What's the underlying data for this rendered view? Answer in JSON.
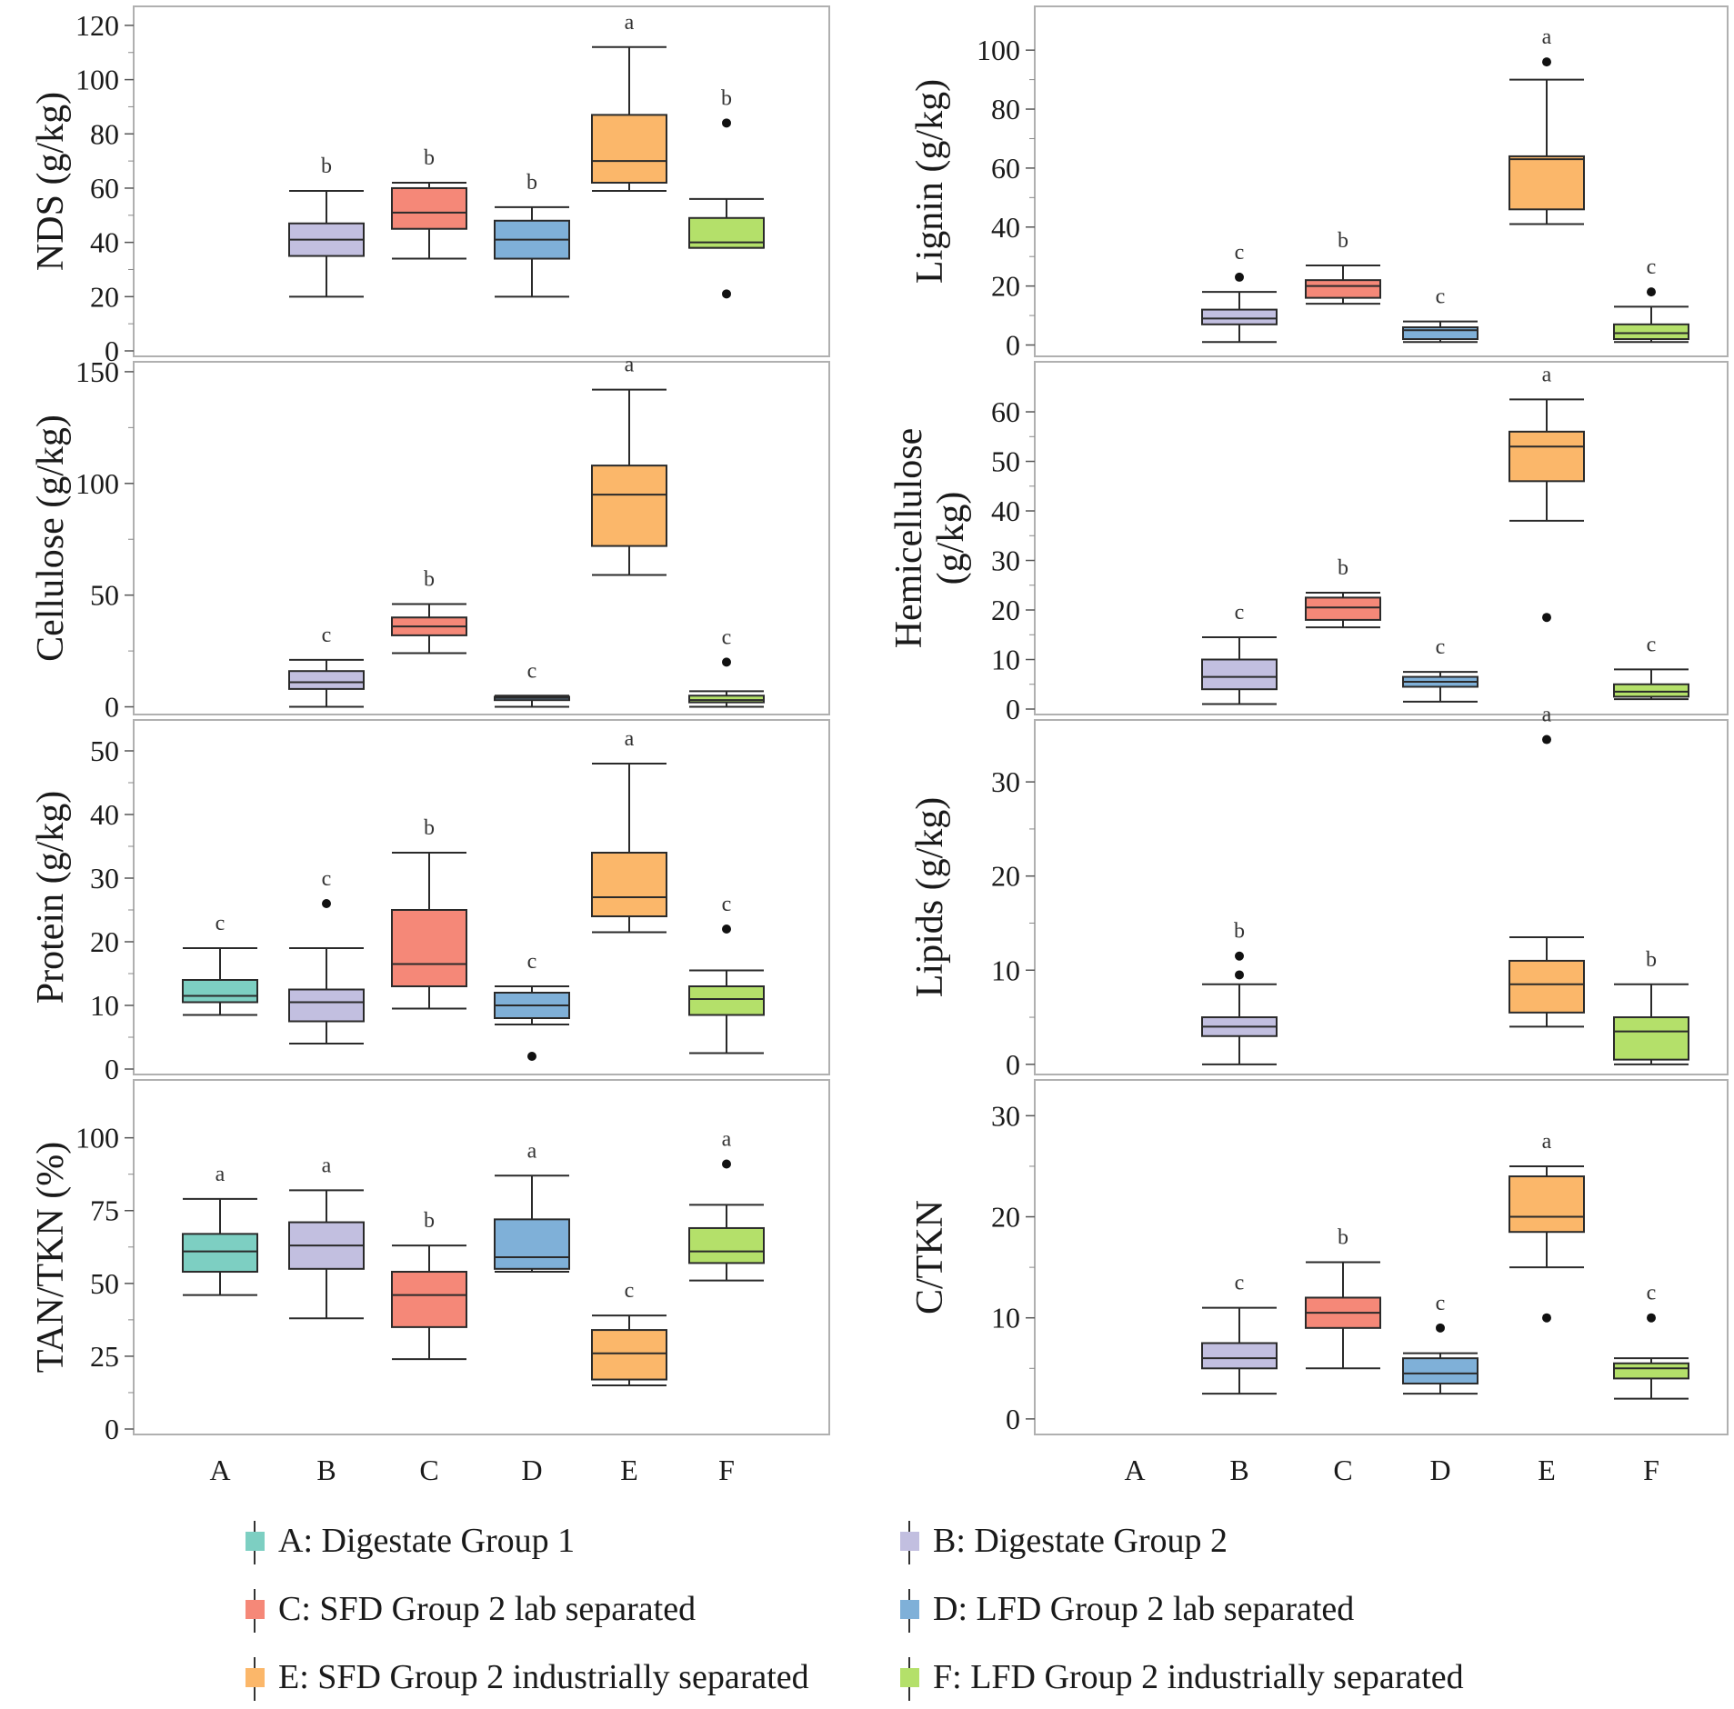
{
  "colors": {
    "A": "#7dcfc2",
    "B": "#c2bfe0",
    "C": "#f58878",
    "D": "#7fb0d8",
    "E": "#fbb76a",
    "F": "#b4e06a"
  },
  "legend": [
    {
      "key": "A",
      "label": "A: Digestate Group 1"
    },
    {
      "key": "B",
      "label": "B: Digestate Group 2"
    },
    {
      "key": "C",
      "label": "C: SFD Group 2 lab separated"
    },
    {
      "key": "D",
      "label": "D: LFD Group 2 lab separated"
    },
    {
      "key": "E",
      "label": "E: SFD Group 2 industrially separated"
    },
    {
      "key": "F",
      "label": "F: LFD Group 2 industrially separated"
    }
  ],
  "chart_data": [
    {
      "type": "box",
      "title": "NDS",
      "ylabel": [
        "NDS (g/kg)"
      ],
      "ylim": [
        0,
        125
      ],
      "yticks": [
        0,
        20,
        40,
        60,
        80,
        100,
        120
      ],
      "categories": [
        "A",
        "B",
        "C",
        "D",
        "E",
        "F"
      ],
      "boxes": [
        {
          "cat": "B",
          "min": 20,
          "q1": 35,
          "median": 41,
          "q3": 47,
          "max": 59,
          "outliers": [],
          "sig": "b"
        },
        {
          "cat": "C",
          "min": 34,
          "q1": 45,
          "median": 51,
          "q3": 60,
          "max": 62,
          "outliers": [],
          "sig": "b"
        },
        {
          "cat": "D",
          "min": 20,
          "q1": 34,
          "median": 41,
          "q3": 48,
          "max": 53,
          "outliers": [],
          "sig": "b"
        },
        {
          "cat": "E",
          "min": 59,
          "q1": 62,
          "median": 70,
          "q3": 87,
          "max": 112,
          "outliers": [],
          "sig": "a"
        },
        {
          "cat": "F",
          "min": 38,
          "q1": 38,
          "median": 40,
          "q3": 49,
          "max": 56,
          "outliers": [
            21,
            84
          ],
          "sig": "b"
        }
      ]
    },
    {
      "type": "box",
      "title": "Lignin",
      "ylabel": [
        "Lignin (g/kg)"
      ],
      "ylim": [
        -2,
        113
      ],
      "yticks": [
        0,
        20,
        40,
        60,
        80,
        100
      ],
      "categories": [
        "A",
        "B",
        "C",
        "D",
        "E",
        "F"
      ],
      "boxes": [
        {
          "cat": "B",
          "min": 1,
          "q1": 7,
          "median": 9,
          "q3": 12,
          "max": 18,
          "outliers": [
            23
          ],
          "sig": "c"
        },
        {
          "cat": "C",
          "min": 14,
          "q1": 16,
          "median": 20,
          "q3": 22,
          "max": 27,
          "outliers": [],
          "sig": "b"
        },
        {
          "cat": "D",
          "min": 1,
          "q1": 2,
          "median": 5,
          "q3": 6,
          "max": 8,
          "outliers": [],
          "sig": "c"
        },
        {
          "cat": "E",
          "min": 41,
          "q1": 46,
          "median": 63,
          "q3": 64,
          "max": 90,
          "outliers": [
            96
          ],
          "sig": "a"
        },
        {
          "cat": "F",
          "min": 1,
          "q1": 2,
          "median": 4,
          "q3": 7,
          "max": 13,
          "outliers": [
            18
          ],
          "sig": "c"
        }
      ]
    },
    {
      "type": "box",
      "title": "Cellulose",
      "ylabel": [
        "Cellulose (g/kg)"
      ],
      "ylim": [
        -1,
        152
      ],
      "yticks": [
        0,
        50,
        100,
        150
      ],
      "categories": [
        "A",
        "B",
        "C",
        "D",
        "E",
        "F"
      ],
      "boxes": [
        {
          "cat": "B",
          "min": 0,
          "q1": 8,
          "median": 11,
          "q3": 16,
          "max": 21,
          "outliers": [],
          "sig": "c"
        },
        {
          "cat": "C",
          "min": 24,
          "q1": 32,
          "median": 36,
          "q3": 40,
          "max": 46,
          "outliers": [],
          "sig": "b"
        },
        {
          "cat": "D",
          "min": 0,
          "q1": 3,
          "median": 4,
          "q3": 4.5,
          "max": 5,
          "outliers": [],
          "sig": "c"
        },
        {
          "cat": "E",
          "min": 59,
          "q1": 72,
          "median": 95,
          "q3": 108,
          "max": 142,
          "outliers": [],
          "sig": "a"
        },
        {
          "cat": "F",
          "min": 0,
          "q1": 2,
          "median": 3,
          "q3": 5,
          "max": 7,
          "outliers": [
            20
          ],
          "sig": "c"
        }
      ]
    },
    {
      "type": "box",
      "title": "Hemicellulose",
      "ylabel": [
        "Hemicellulose",
        "(g/kg)"
      ],
      "ylim": [
        0,
        69
      ],
      "yticks": [
        0,
        10,
        20,
        30,
        40,
        50,
        60
      ],
      "categories": [
        "A",
        "B",
        "C",
        "D",
        "E",
        "F"
      ],
      "boxes": [
        {
          "cat": "B",
          "min": 1,
          "q1": 4,
          "median": 6.5,
          "q3": 10,
          "max": 14.5,
          "outliers": [],
          "sig": "c"
        },
        {
          "cat": "C",
          "min": 16.5,
          "q1": 18,
          "median": 20.5,
          "q3": 22.5,
          "max": 23.5,
          "outliers": [],
          "sig": "b"
        },
        {
          "cat": "D",
          "min": 1.5,
          "q1": 4.5,
          "median": 5.5,
          "q3": 6.5,
          "max": 7.5,
          "outliers": [],
          "sig": "c"
        },
        {
          "cat": "E",
          "min": 38,
          "q1": 46,
          "median": 53,
          "q3": 56,
          "max": 62.5,
          "outliers": [
            18.5
          ],
          "sig": "a"
        },
        {
          "cat": "F",
          "min": 2,
          "q1": 2.5,
          "median": 3.5,
          "q3": 5,
          "max": 8,
          "outliers": [],
          "sig": "c"
        }
      ]
    },
    {
      "type": "box",
      "title": "Protein",
      "ylabel": [
        "Protein (g/kg)"
      ],
      "ylim": [
        0,
        54
      ],
      "yticks": [
        0,
        10,
        20,
        30,
        40,
        50
      ],
      "categories": [
        "A",
        "B",
        "C",
        "D",
        "E",
        "F"
      ],
      "boxes": [
        {
          "cat": "A",
          "min": 8.5,
          "q1": 10.5,
          "median": 11.5,
          "q3": 14,
          "max": 19,
          "outliers": [],
          "sig": "c"
        },
        {
          "cat": "B",
          "min": 4,
          "q1": 7.5,
          "median": 10.5,
          "q3": 12.5,
          "max": 19,
          "outliers": [
            26
          ],
          "sig": "c"
        },
        {
          "cat": "C",
          "min": 9.5,
          "q1": 13,
          "median": 16.5,
          "q3": 25,
          "max": 34,
          "outliers": [],
          "sig": "b"
        },
        {
          "cat": "D",
          "min": 7,
          "q1": 8,
          "median": 10,
          "q3": 12,
          "max": 13,
          "outliers": [
            2
          ],
          "sig": "c"
        },
        {
          "cat": "E",
          "min": 21.5,
          "q1": 24,
          "median": 27,
          "q3": 34,
          "max": 48,
          "outliers": [],
          "sig": "a"
        },
        {
          "cat": "F",
          "min": 2.5,
          "q1": 8.5,
          "median": 11,
          "q3": 13,
          "max": 15.5,
          "outliers": [
            22
          ],
          "sig": "c"
        }
      ]
    },
    {
      "type": "box",
      "title": "Lipids",
      "ylabel": [
        "Lipids (g/kg)"
      ],
      "ylim": [
        -0.5,
        36
      ],
      "yticks": [
        0,
        10,
        20,
        30
      ],
      "categories": [
        "A",
        "B",
        "C",
        "D",
        "E",
        "F"
      ],
      "boxes": [
        {
          "cat": "B",
          "min": 0,
          "q1": 3,
          "median": 4,
          "q3": 5,
          "max": 8.5,
          "outliers": [
            9.5,
            11.5
          ],
          "sig": "b"
        },
        {
          "cat": "E",
          "min": 4,
          "q1": 5.5,
          "median": 8.5,
          "q3": 11,
          "max": 13.5,
          "outliers": [
            34.5
          ],
          "sig": "a"
        },
        {
          "cat": "F",
          "min": 0,
          "q1": 0.5,
          "median": 3.5,
          "q3": 5,
          "max": 8.5,
          "outliers": [],
          "sig": "b"
        }
      ]
    },
    {
      "type": "box",
      "title": "TAN/TKN",
      "ylabel": [
        "TAN/TKN (%)"
      ],
      "ylim": [
        0,
        118
      ],
      "yticks": [
        0,
        25,
        50,
        75,
        100
      ],
      "categories": [
        "A",
        "B",
        "C",
        "D",
        "E",
        "F"
      ],
      "boxes": [
        {
          "cat": "A",
          "min": 46,
          "q1": 54,
          "median": 61,
          "q3": 67,
          "max": 79,
          "outliers": [],
          "sig": "a"
        },
        {
          "cat": "B",
          "min": 38,
          "q1": 55,
          "median": 63,
          "q3": 71,
          "max": 82,
          "outliers": [],
          "sig": "a"
        },
        {
          "cat": "C",
          "min": 24,
          "q1": 35,
          "median": 46,
          "q3": 54,
          "max": 63,
          "outliers": [],
          "sig": "b"
        },
        {
          "cat": "D",
          "min": 54,
          "q1": 55,
          "median": 59,
          "q3": 72,
          "max": 87,
          "outliers": [],
          "sig": "a"
        },
        {
          "cat": "E",
          "min": 15,
          "q1": 17,
          "median": 26,
          "q3": 34,
          "max": 39,
          "outliers": [],
          "sig": "c"
        },
        {
          "cat": "F",
          "min": 51,
          "q1": 57,
          "median": 61,
          "q3": 69,
          "max": 77,
          "outliers": [
            91
          ],
          "sig": "a"
        }
      ]
    },
    {
      "type": "box",
      "title": "C/TKN",
      "ylabel": [
        "C/TKN"
      ],
      "ylim": [
        -1,
        33
      ],
      "yticks": [
        0,
        10,
        20,
        30
      ],
      "categories": [
        "A",
        "B",
        "C",
        "D",
        "E",
        "F"
      ],
      "boxes": [
        {
          "cat": "B",
          "min": 2.5,
          "q1": 5,
          "median": 6,
          "q3": 7.5,
          "max": 11,
          "outliers": [],
          "sig": "c"
        },
        {
          "cat": "C",
          "min": 5,
          "q1": 9,
          "median": 10.5,
          "q3": 12,
          "max": 15.5,
          "outliers": [],
          "sig": "b"
        },
        {
          "cat": "D",
          "min": 2.5,
          "q1": 3.5,
          "median": 4.5,
          "q3": 6,
          "max": 6.5,
          "outliers": [
            9
          ],
          "sig": "c"
        },
        {
          "cat": "E",
          "min": 15,
          "q1": 18.5,
          "median": 20,
          "q3": 24,
          "max": 25,
          "outliers": [
            10
          ],
          "sig": "a"
        },
        {
          "cat": "F",
          "min": 2,
          "q1": 4,
          "median": 5,
          "q3": 5.5,
          "max": 6,
          "outliers": [
            10
          ],
          "sig": "c"
        }
      ]
    }
  ]
}
